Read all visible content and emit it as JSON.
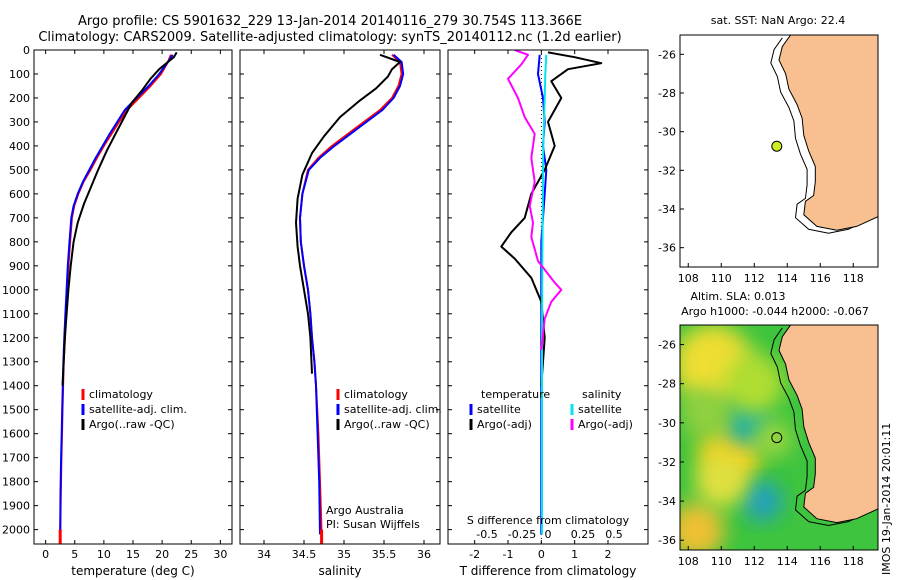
{
  "header": {
    "title_line1": "Argo profile: CS 5901632_229 13-Jan-2014 20140116_279 30.754S 113.366E",
    "title_line2": "Climatology: CARS2009. Satellite-adjusted climatology: synTS_20140112.nc (1.2d earlier)"
  },
  "stamp": "IMOS 19-Jan-2014 20:01:11",
  "colors": {
    "climatology": "#ff0000",
    "satellite": "#0000ff",
    "argo": "#000000",
    "s_satellite": "#00e5ee",
    "s_argo": "#ff00ff",
    "land": "#f8c090",
    "float": "#ccee22"
  },
  "chart_data": [
    {
      "id": "temperature",
      "type": "line",
      "xlabel": "temperature (deg C)",
      "ylabel": "",
      "xlim": [
        -2,
        32
      ],
      "ylim": [
        2060,
        0
      ],
      "xticks": [
        "0",
        "5",
        "10",
        "15",
        "20",
        "25",
        "30"
      ],
      "yticks": [
        "0",
        "100",
        "200",
        "300",
        "400",
        "500",
        "600",
        "700",
        "800",
        "900",
        "1000",
        "1100",
        "1200",
        "1300",
        "1400",
        "1500",
        "1600",
        "1700",
        "1800",
        "1900",
        "2000"
      ],
      "legend": [
        "climatology",
        "satellite-adj. clim.",
        "Argo(..raw -QC)"
      ],
      "series": [
        {
          "name": "climatology",
          "color": "#ff0000",
          "x": [
            21.5,
            21.0,
            19.8,
            18.0,
            16.0,
            14.0,
            12.6,
            11.3,
            10.0,
            8.8,
            7.7,
            6.5,
            5.6,
            4.9,
            4.5,
            4.2,
            3.9,
            3.7,
            3.5,
            3.3,
            3.1,
            3.0,
            2.9,
            2.8,
            2.7,
            2.6,
            2.5
          ],
          "y": [
            20,
            50,
            100,
            150,
            200,
            250,
            300,
            350,
            400,
            450,
            500,
            550,
            600,
            650,
            700,
            800,
            900,
            1000,
            1100,
            1200,
            1300,
            1400,
            1500,
            1600,
            1700,
            1850,
            2020
          ]
        },
        {
          "name": "satellite-adj. clim.",
          "color": "#0000ff",
          "x": [
            21.8,
            21.0,
            19.5,
            17.7,
            15.6,
            13.6,
            12.3,
            11.0,
            9.8,
            8.6,
            7.5,
            6.4,
            5.5,
            4.8,
            4.4,
            4.1,
            3.8,
            3.6,
            3.4,
            3.2,
            3.05,
            2.95,
            2.85,
            2.75,
            2.65,
            2.55,
            2.5
          ],
          "y": [
            20,
            50,
            100,
            150,
            200,
            250,
            300,
            350,
            400,
            450,
            500,
            550,
            600,
            650,
            700,
            800,
            900,
            1000,
            1100,
            1200,
            1300,
            1400,
            1500,
            1600,
            1700,
            1850,
            2020
          ]
        },
        {
          "name": "Argo(..raw -QC)",
          "color": "#000000",
          "x": [
            22.5,
            22.0,
            21.0,
            19.5,
            18.0,
            16.5,
            14.8,
            13.5,
            12.0,
            10.5,
            9.0,
            7.8,
            6.6,
            5.5,
            4.8,
            4.3,
            3.9,
            3.6,
            3.3,
            3.1,
            2.9
          ],
          "y": [
            10,
            30,
            50,
            80,
            120,
            170,
            220,
            280,
            350,
            420,
            500,
            570,
            640,
            720,
            800,
            900,
            1000,
            1100,
            1200,
            1300,
            1400
          ]
        }
      ]
    },
    {
      "id": "salinity",
      "type": "line",
      "xlabel": "salinity",
      "ylabel": "",
      "xlim": [
        33.7,
        36.2
      ],
      "ylim": [
        2060,
        0
      ],
      "xticks": [
        "34",
        "34.5",
        "35",
        "35.5",
        "36"
      ],
      "legend": [
        "climatology",
        "satellite-adj. clim.",
        "Argo(..raw -QC)"
      ],
      "annotation": [
        "Argo Australia",
        "PI: Susan Wijffels"
      ],
      "series": [
        {
          "name": "climatology",
          "color": "#ff0000",
          "x": [
            35.6,
            35.7,
            35.72,
            35.68,
            35.6,
            35.45,
            35.25,
            35.05,
            34.85,
            34.68,
            34.55,
            34.48,
            34.45,
            34.46,
            34.5,
            34.55,
            34.58,
            34.6,
            34.63,
            34.65,
            34.68,
            34.7,
            34.72
          ],
          "y": [
            20,
            50,
            100,
            150,
            200,
            250,
            300,
            350,
            400,
            450,
            500,
            600,
            700,
            800,
            900,
            1000,
            1100,
            1200,
            1300,
            1400,
            1600,
            1800,
            2020
          ]
        },
        {
          "name": "satellite-adj. clim.",
          "color": "#0000ff",
          "x": [
            35.62,
            35.72,
            35.74,
            35.7,
            35.62,
            35.48,
            35.28,
            35.08,
            34.88,
            34.7,
            34.56,
            34.48,
            34.45,
            34.46,
            34.5,
            34.55,
            34.58,
            34.6,
            34.63,
            34.65,
            34.67,
            34.69,
            34.7
          ],
          "y": [
            20,
            50,
            100,
            150,
            200,
            250,
            300,
            350,
            400,
            450,
            500,
            600,
            700,
            800,
            900,
            1000,
            1100,
            1200,
            1300,
            1400,
            1600,
            1800,
            2020
          ]
        },
        {
          "name": "Argo(..raw -QC)",
          "color": "#000000",
          "x": [
            35.45,
            35.7,
            35.6,
            35.55,
            35.4,
            35.2,
            34.95,
            34.75,
            34.6,
            34.48,
            34.42,
            34.4,
            34.42,
            34.45,
            34.5,
            34.55,
            34.58,
            34.6
          ],
          "y": [
            20,
            50,
            80,
            110,
            160,
            210,
            280,
            360,
            430,
            520,
            620,
            720,
            820,
            900,
            1000,
            1100,
            1200,
            1350
          ]
        }
      ]
    },
    {
      "id": "difference",
      "type": "line",
      "xlabel": "T difference from climatology",
      "xlabel_top": "S difference from climatology",
      "ylabel": "",
      "xlim": [
        -2.8,
        3.2
      ],
      "ylim": [
        2060,
        0
      ],
      "xticks": [
        "-2",
        "-1",
        "0",
        "1",
        "2"
      ],
      "xticks_top": [
        "-0.5",
        "-0.25",
        "0",
        "0.25",
        "0.5"
      ],
      "legend": [
        "temperature",
        "satellite",
        "Argo(-adj)",
        "salinity",
        "satellite",
        "Argo(-adj)"
      ],
      "series": [
        {
          "name": "satellite",
          "color": "#0000ff",
          "x": [
            -0.05,
            -0.1,
            0.05,
            0.1,
            0.05,
            0.15,
            0.1,
            0.05,
            0,
            0,
            0,
            0,
            0
          ],
          "y": [
            20,
            100,
            200,
            300,
            400,
            500,
            600,
            700,
            800,
            900,
            1100,
            1500,
            2020
          ]
        },
        {
          "name": "Argo(-adj)",
          "color": "#000000",
          "x": [
            0.2,
            1.0,
            1.8,
            0.8,
            0.3,
            0.6,
            0.2,
            0.4,
            0.1,
            -0.3,
            -0.5,
            -0.9,
            -1.2,
            -0.8,
            -0.3,
            0,
            0.1,
            0
          ],
          "y": [
            10,
            30,
            55,
            80,
            130,
            200,
            300,
            400,
            500,
            600,
            700,
            760,
            820,
            870,
            950,
            1050,
            1200,
            1400
          ]
        },
        {
          "name": "salinity satellite",
          "color": "#00e5ee",
          "x": [
            0.15,
            0.12,
            0.1,
            0.08,
            0.06,
            0.05,
            0.04,
            0.03,
            0.02,
            0.02,
            0.02
          ],
          "y": [
            20,
            100,
            200,
            300,
            400,
            500,
            700,
            900,
            1200,
            1600,
            2020
          ]
        },
        {
          "name": "salinity Argo(-adj)",
          "color": "#ff00ff",
          "x": [
            -0.8,
            -0.4,
            -0.6,
            -1.0,
            -0.7,
            -0.5,
            -0.2,
            -0.3,
            -0.2,
            -0.35,
            -0.25,
            -0.3,
            -0.1,
            0.4,
            0.6,
            0.3,
            0.1,
            0
          ],
          "y": [
            0,
            20,
            60,
            120,
            200,
            280,
            350,
            450,
            550,
            650,
            720,
            780,
            880,
            970,
            1000,
            1050,
            1120,
            1250
          ]
        }
      ]
    },
    {
      "id": "sst_map",
      "type": "map",
      "title": "sat. SST: NaN Argo: 22.4",
      "xlim": [
        107.5,
        119.5
      ],
      "ylim": [
        -37,
        -25
      ],
      "xticks": [
        "108",
        "110",
        "112",
        "114",
        "116",
        "118"
      ],
      "yticks": [
        "-26",
        "-28",
        "-30",
        "-32",
        "-34",
        "-36"
      ],
      "float": {
        "lon": 113.366,
        "lat": -30.754
      }
    },
    {
      "id": "sla_map",
      "type": "map",
      "title_line1": "Altim. SLA: 0.013",
      "title_line2": "Argo h1000: -0.044 h2000: -0.067",
      "xlim": [
        107.5,
        119.5
      ],
      "ylim": [
        -36.5,
        -25
      ],
      "xticks": [
        "108",
        "110",
        "112",
        "114",
        "116",
        "118"
      ],
      "yticks": [
        "-26",
        "-28",
        "-30",
        "-32",
        "-34",
        "-36"
      ],
      "float": {
        "lon": 113.366,
        "lat": -30.754
      }
    }
  ]
}
